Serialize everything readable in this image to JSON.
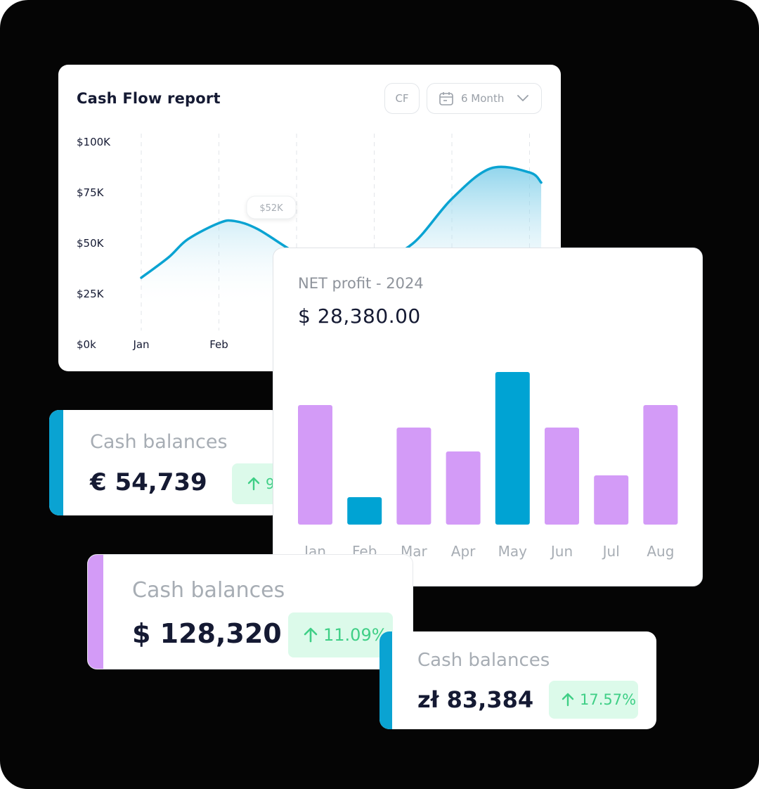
{
  "cash_flow": {
    "title": "Cash Flow report",
    "cf_button": "CF",
    "range_button": "6 Month",
    "tooltip": "$52K",
    "accent": "#0aa3d2",
    "icons": [
      "calendar-icon",
      "chevron-down-icon"
    ]
  },
  "net_profit": {
    "title": "NET profit - 2024",
    "value": "$ 28,380.00"
  },
  "balances": [
    {
      "label": "Cash balances",
      "value": "€ 54,739",
      "change": "9",
      "stripe": "#0aa3d2"
    },
    {
      "label": "Cash balances",
      "value": "$ 128,320",
      "change": "11.09%",
      "stripe": "#d39bf7"
    },
    {
      "label": "Cash balances",
      "value": "zł 83,384",
      "change": "17.57%",
      "stripe": "#0aa3d2"
    }
  ],
  "chart_data": [
    {
      "type": "area",
      "title": "Cash Flow report",
      "y_ticks": [
        "$100K",
        "$75K",
        "$50K",
        "$25K",
        "$0k"
      ],
      "x_ticks": [
        "Jan",
        "Feb"
      ],
      "ylim": [
        0,
        100000
      ],
      "grid": "vertical-dashed",
      "series": [
        {
          "x": [
            0,
            0.35,
            0.6,
            1.0,
            1.2,
            1.5,
            2.0,
            2.5,
            3.0,
            3.5,
            4.0,
            4.5,
            5.0,
            5.15
          ],
          "values": [
            33000,
            43000,
            52000,
            60000,
            61000,
            57000,
            45000,
            36000,
            40000,
            50000,
            72000,
            87000,
            85000,
            80000
          ]
        }
      ],
      "color": "#0aa3d2"
    },
    {
      "type": "bar",
      "title": "NET profit - 2024",
      "categories": [
        "Jan",
        "Feb",
        "Mar",
        "Apr",
        "May",
        "Jun",
        "Jul",
        "Aug"
      ],
      "values": [
        170,
        39,
        138,
        104,
        217,
        138,
        70,
        170
      ],
      "colors": [
        "#d39bf7",
        "#00a3d3",
        "#d39bf7",
        "#d39bf7",
        "#00a3d3",
        "#d39bf7",
        "#d39bf7",
        "#d39bf7"
      ],
      "ylim": [
        0,
        217
      ]
    }
  ]
}
